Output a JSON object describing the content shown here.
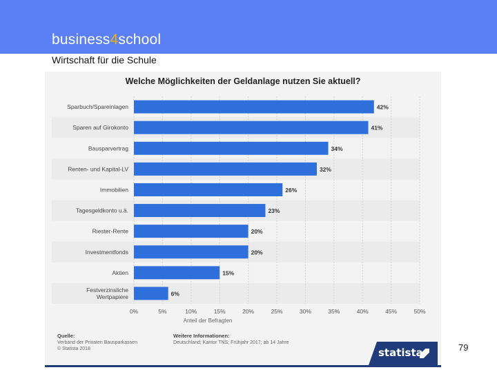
{
  "header": {
    "brand_prefix": "business",
    "brand_digit": "4",
    "brand_suffix": "school",
    "tagline": "Wirtschaft für die Schule"
  },
  "page_number": "79",
  "source": {
    "label": "Quelle:",
    "line1": "Verband der Privaten Bausparkassen",
    "line2": "© Statista 2018"
  },
  "info": {
    "label": "Weitere Informationen:",
    "line1": "Deutschland; Kantor TNS; Frühjahr 2017; ab 14 Jahre"
  },
  "logo": {
    "text": "statista"
  },
  "colors": {
    "header": "#5b7ff4",
    "accent": "#f7b500",
    "bar": "#2f6fdc",
    "logo": "#1f3b7a"
  },
  "chart_data": {
    "type": "bar",
    "orientation": "horizontal",
    "title": "Welche Möglichkeiten der Geldanlage nutzen Sie aktuell?",
    "xlabel": "Anteil der Befragten",
    "ylabel": "",
    "xlim": [
      0,
      50
    ],
    "xticks": [
      "0%",
      "5%",
      "10%",
      "15%",
      "20%",
      "25%",
      "30%",
      "35%",
      "40%",
      "45%",
      "50%"
    ],
    "grid": true,
    "categories": [
      "Sparbuch/Spareinlagen",
      "Sparen auf Girokonto",
      "Bausparvertrag",
      "Renten- und Kapital-LV",
      "Immobilien",
      "Tagesgeldkonto u.ä.",
      "Riester-Rente",
      "Investmentfonds",
      "Aktien",
      "Festverzinsliche Wertpapiere"
    ],
    "values": [
      42,
      41,
      34,
      32,
      26,
      23,
      20,
      20,
      15,
      6
    ],
    "value_labels": [
      "42%",
      "41%",
      "34%",
      "32%",
      "26%",
      "23%",
      "20%",
      "20%",
      "15%",
      "6%"
    ]
  }
}
